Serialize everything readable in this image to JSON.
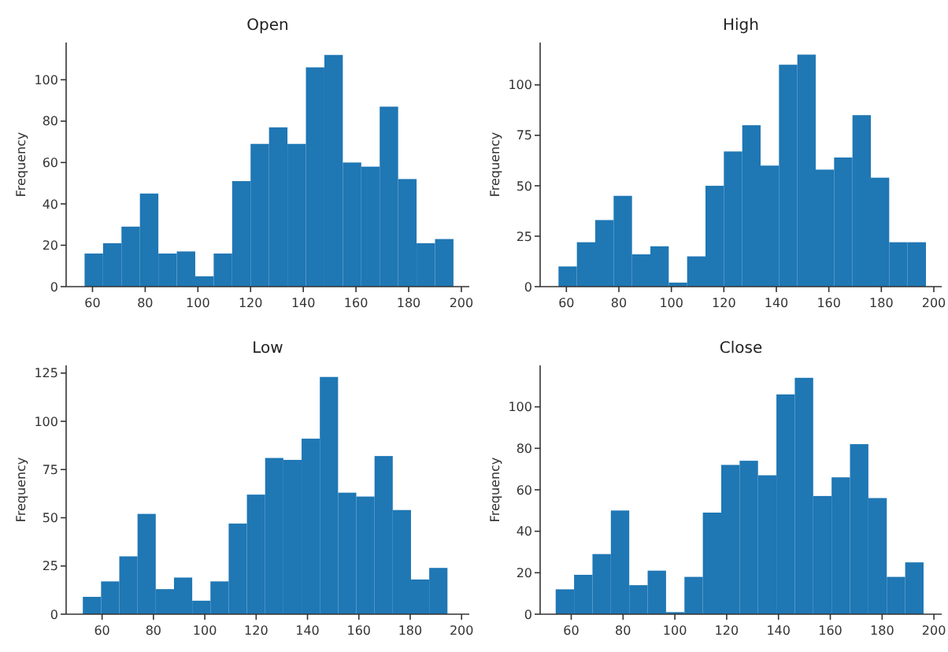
{
  "chart_data": [
    {
      "type": "histogram",
      "title": "Open",
      "ylabel": "Frequency",
      "color": "#1f77b4",
      "bins": [
        57,
        64,
        71,
        78,
        85,
        92,
        99,
        106,
        113,
        120,
        127,
        134,
        141,
        148,
        155,
        162,
        169,
        176,
        183,
        190,
        197
      ],
      "values": [
        16,
        21,
        29,
        45,
        16,
        17,
        5,
        16,
        51,
        69,
        77,
        69,
        106,
        112,
        60,
        58,
        87,
        52,
        21,
        23
      ],
      "xlim": [
        50,
        203
      ],
      "ylim": [
        0,
        118
      ],
      "xticks": [
        60,
        80,
        100,
        120,
        140,
        160,
        180,
        200
      ],
      "yticks": [
        0,
        20,
        40,
        60,
        80,
        100
      ],
      "grid": false
    },
    {
      "type": "histogram",
      "title": "High",
      "ylabel": "Frequency",
      "color": "#1f77b4",
      "bins": [
        57,
        64,
        71,
        78,
        85,
        92,
        99,
        106,
        113,
        120,
        127,
        134,
        141,
        148,
        155,
        162,
        169,
        176,
        183,
        190,
        197
      ],
      "values": [
        10,
        22,
        33,
        45,
        16,
        20,
        2,
        15,
        50,
        67,
        80,
        60,
        110,
        115,
        58,
        64,
        85,
        54,
        22,
        22
      ],
      "xlim": [
        50,
        203
      ],
      "ylim": [
        0,
        121
      ],
      "xticks": [
        60,
        80,
        100,
        120,
        140,
        160,
        180,
        200
      ],
      "yticks": [
        0,
        25,
        50,
        75,
        100
      ],
      "grid": false
    },
    {
      "type": "histogram",
      "title": "Low",
      "ylabel": "Frequency",
      "color": "#1f77b4",
      "bins": [
        52.5,
        59.6,
        66.7,
        73.8,
        80.9,
        88,
        95.1,
        102.2,
        109.3,
        116.4,
        123.5,
        130.6,
        137.7,
        144.8,
        151.9,
        159,
        166.1,
        173.2,
        180.3,
        187.4,
        194.5
      ],
      "values": [
        9,
        17,
        30,
        52,
        13,
        19,
        7,
        17,
        47,
        62,
        81,
        80,
        91,
        123,
        63,
        61,
        82,
        54,
        18,
        24
      ],
      "xlim": [
        46,
        203
      ],
      "ylim": [
        0,
        129
      ],
      "xticks": [
        60,
        80,
        100,
        120,
        140,
        160,
        180,
        200
      ],
      "yticks": [
        0,
        25,
        50,
        75,
        100,
        125
      ],
      "grid": false
    },
    {
      "type": "histogram",
      "title": "Close",
      "ylabel": "Frequency",
      "color": "#1f77b4",
      "bins": [
        54,
        61.1,
        68.2,
        75.3,
        82.4,
        89.5,
        96.6,
        103.7,
        110.8,
        117.9,
        125,
        132.1,
        139.2,
        146.3,
        153.4,
        160.5,
        167.6,
        174.7,
        181.8,
        188.9,
        196
      ],
      "values": [
        12,
        19,
        29,
        50,
        14,
        21,
        1,
        18,
        49,
        72,
        74,
        67,
        106,
        114,
        57,
        66,
        82,
        56,
        18,
        25
      ],
      "xlim": [
        48,
        203
      ],
      "ylim": [
        0,
        120
      ],
      "xticks": [
        60,
        80,
        100,
        120,
        140,
        160,
        180,
        200
      ],
      "yticks": [
        0,
        20,
        40,
        60,
        80,
        100
      ],
      "grid": false
    }
  ]
}
